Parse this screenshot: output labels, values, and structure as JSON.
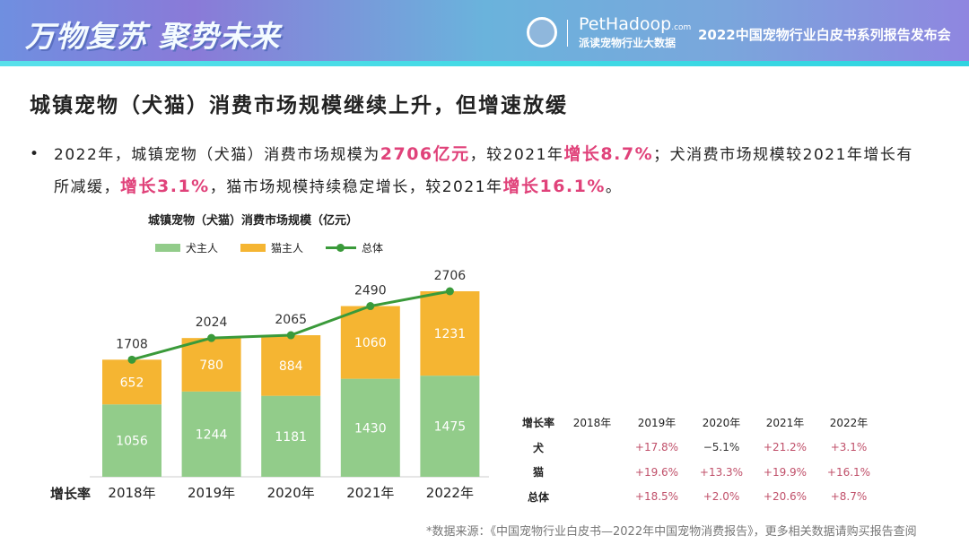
{
  "banner": {
    "slogan": "万物复苏  聚势未来",
    "brand": "PetHadoop",
    "brand_suffix": ".com",
    "brand_sub": "派读宠物行业大数据",
    "event": "2022中国宠物行业白皮书系列报告发布会"
  },
  "headline": "城镇宠物（犬猫）消费市场规模继续上升，但增速放缓",
  "bullet": {
    "p1": "2022年，城镇宠物（犬猫）消费市场规模为",
    "h1": "2706亿元",
    "p2": "，较2021年",
    "h2": "增长8.7%",
    "p3": "；犬消费市场规模较2021年增长有所减缓，",
    "h3": "增长3.1%",
    "p4": "，猫市场规模持续稳定增长，较2021年",
    "h4": "增长16.1%",
    "p5": "。"
  },
  "chart_data": {
    "type": "bar",
    "stacked": true,
    "title": "城镇宠物（犬猫）消费市场规模（亿元）",
    "categories": [
      "2018年",
      "2019年",
      "2020年",
      "2021年",
      "2022年"
    ],
    "series": [
      {
        "name": "犬主人",
        "type": "bar",
        "color": "#92cc8a",
        "values": [
          1056,
          1244,
          1181,
          1430,
          1475
        ]
      },
      {
        "name": "猫主人",
        "type": "bar",
        "color": "#f5b532",
        "values": [
          652,
          780,
          884,
          1060,
          1231
        ]
      },
      {
        "name": "总体",
        "type": "line",
        "color": "#3a9a3a",
        "values": [
          1708,
          2024,
          2065,
          2490,
          2706
        ]
      }
    ],
    "ylim": [
      0,
      2706
    ],
    "legend": "top-left",
    "grid": false
  },
  "rate_label": "增长率",
  "rate_table": {
    "headers": [
      "增长率",
      "2018年",
      "2019年",
      "2020年",
      "2021年",
      "2022年"
    ],
    "rows": [
      {
        "label": "犬",
        "values": [
          "",
          "+17.8%",
          "−5.1%",
          "+21.2%",
          "+3.1%"
        ]
      },
      {
        "label": "猫",
        "values": [
          "",
          "+19.6%",
          "+13.3%",
          "+19.9%",
          "+16.1%"
        ]
      },
      {
        "label": "总体",
        "values": [
          "",
          "+18.5%",
          "+2.0%",
          "+20.6%",
          "+8.7%"
        ]
      }
    ]
  },
  "source": "*数据来源：《中国宠物行业白皮书—2022年中国宠物消费报告》，更多相关数据请购买报告查阅"
}
